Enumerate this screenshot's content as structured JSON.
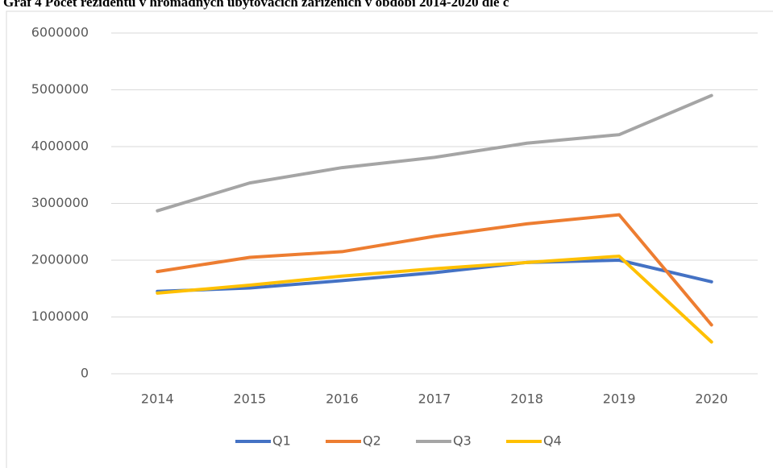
{
  "chart_data": {
    "type": "line",
    "title": "Graf 4 Počet rezidentů v hromadných ubytovacích zařízeních v období 2014-2020 dle č",
    "categories": [
      "2014",
      "2015",
      "2016",
      "2017",
      "2018",
      "2019",
      "2020"
    ],
    "series": [
      {
        "name": "Q1",
        "color": "#4472c4",
        "values": [
          1450000,
          1510000,
          1640000,
          1780000,
          1960000,
          2000000,
          1620000
        ]
      },
      {
        "name": "Q2",
        "color": "#ed7d31",
        "values": [
          1800000,
          2050000,
          2150000,
          2420000,
          2640000,
          2800000,
          860000
        ]
      },
      {
        "name": "Q3",
        "color": "#a5a5a5",
        "values": [
          2870000,
          3360000,
          3630000,
          3810000,
          4060000,
          4210000,
          4900000
        ]
      },
      {
        "name": "Q4",
        "color": "#ffc000",
        "values": [
          1420000,
          1560000,
          1720000,
          1850000,
          1960000,
          2070000,
          560000
        ]
      }
    ],
    "ylim": [
      0,
      6000000
    ],
    "yticks": [
      0,
      1000000,
      2000000,
      3000000,
      4000000,
      5000000,
      6000000
    ],
    "grid": true,
    "legend": "bottom"
  }
}
